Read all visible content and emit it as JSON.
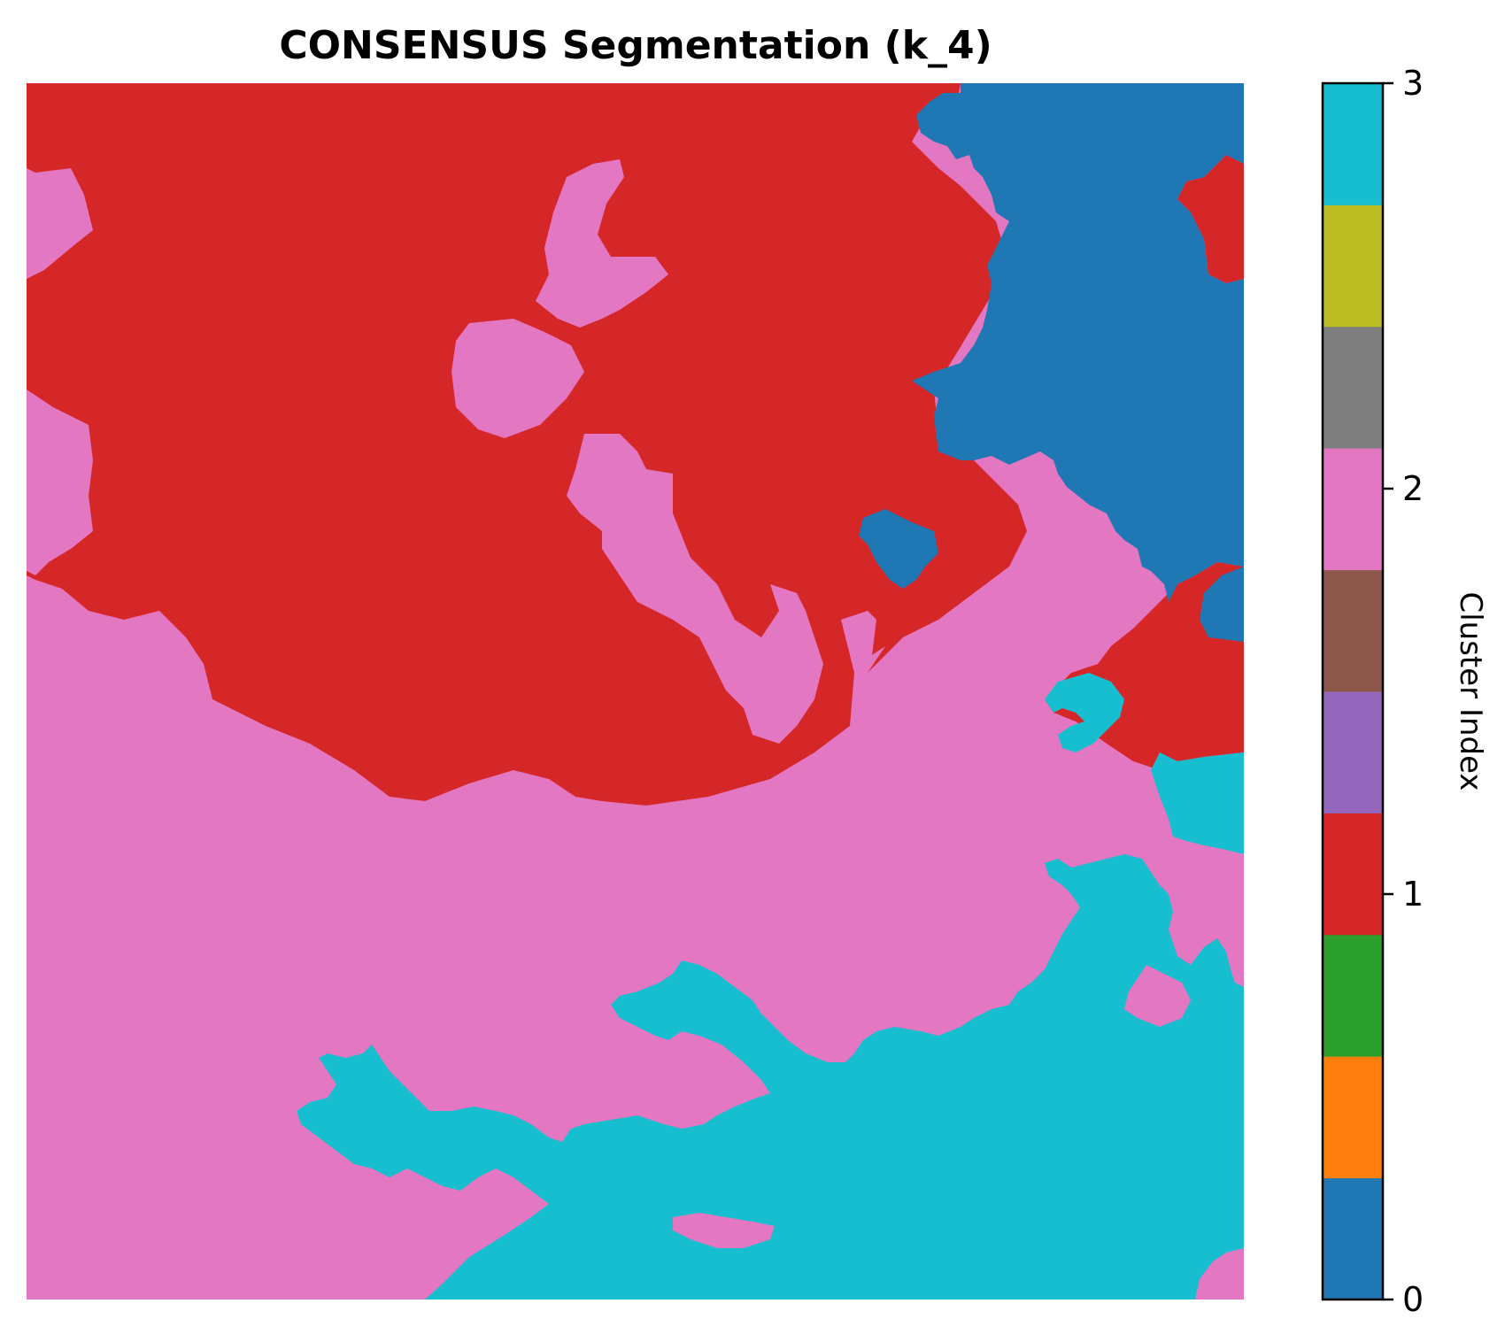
{
  "chart_data": {
    "type": "heatmap",
    "title": "CONSENSUS Segmentation (k_4)",
    "axes_visible": false,
    "regions": [
      {
        "cluster": 1,
        "color": "#d62728",
        "description_key": "upper-left-red"
      },
      {
        "cluster": 0,
        "color": "#1f77b4",
        "description_key": "upper-right-blue"
      },
      {
        "cluster": 2,
        "color": "#e377c2",
        "description_key": "middle-pink"
      },
      {
        "cluster": 3,
        "color": "#17becf",
        "description_key": "lower-cyan"
      }
    ],
    "colorbar": {
      "label": "Cluster Index",
      "range": [
        0,
        3
      ],
      "ticks": [
        0,
        1,
        2,
        3
      ],
      "tick_labels": [
        "0",
        "1",
        "2",
        "3"
      ],
      "colormap": "tab10",
      "colors": [
        "#1f77b4",
        "#ff7f0e",
        "#2ca02c",
        "#d62728",
        "#9467bd",
        "#8c564b",
        "#e377c2",
        "#7f7f7f",
        "#bcbd22",
        "#17becf"
      ]
    }
  }
}
